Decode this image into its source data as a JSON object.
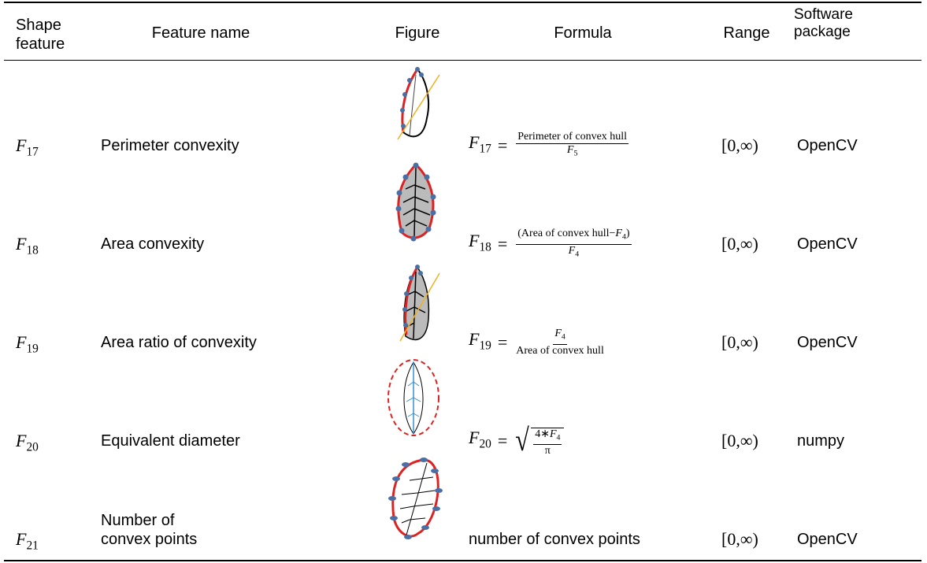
{
  "header": {
    "columns": [
      "Shape feature",
      "Feature name",
      "Figure",
      "Formula",
      "Range",
      "Software package"
    ]
  },
  "table": {
    "rows": [
      {
        "feature": {
          "base": "F",
          "sub": "17"
        },
        "name": "Perimeter convexity",
        "formula": {
          "kind": "fraction",
          "lhs": {
            "base": "F",
            "sub": "17"
          },
          "eq": "=",
          "num": [
            "Perimeter of convex hull"
          ],
          "den": [
            {
              "base": "F",
              "sub": "5"
            }
          ]
        },
        "range": "[0,∞)",
        "package": "OpenCV"
      },
      {
        "feature": {
          "base": "F",
          "sub": "18"
        },
        "name": "Area convexity",
        "formula": {
          "kind": "fraction",
          "lhs": {
            "base": "F",
            "sub": "18"
          },
          "eq": "=",
          "num": [
            "(Area of convex hull−",
            {
              "base": "F",
              "sub": "4"
            },
            ")"
          ],
          "den": [
            {
              "base": "F",
              "sub": "4"
            }
          ]
        },
        "range": "[0,∞)",
        "package": "OpenCV"
      },
      {
        "feature": {
          "base": "F",
          "sub": "19"
        },
        "name": "Area ratio of convexity",
        "formula": {
          "kind": "fraction",
          "lhs": {
            "base": "F",
            "sub": "19"
          },
          "eq": "=",
          "num": [
            {
              "base": "F",
              "sub": "4"
            }
          ],
          "den": [
            "Area of convex hull"
          ]
        },
        "range": "[0,∞)",
        "package": "OpenCV"
      },
      {
        "feature": {
          "base": "F",
          "sub": "20"
        },
        "name": "Equivalent diameter",
        "formula": {
          "kind": "sqrt",
          "lhs": {
            "base": "F",
            "sub": "20"
          },
          "eq": "=",
          "num": [
            "4∗",
            {
              "base": "F",
              "sub": "4"
            }
          ],
          "den": [
            "π"
          ]
        },
        "range": "[0,∞)",
        "package": "numpy"
      },
      {
        "feature": {
          "base": "F",
          "sub": "21"
        },
        "name": "Number of convex points",
        "formula": {
          "kind": "text",
          "text": "number of convex points"
        },
        "range": "[0,∞)",
        "package": "OpenCV"
      }
    ]
  }
}
